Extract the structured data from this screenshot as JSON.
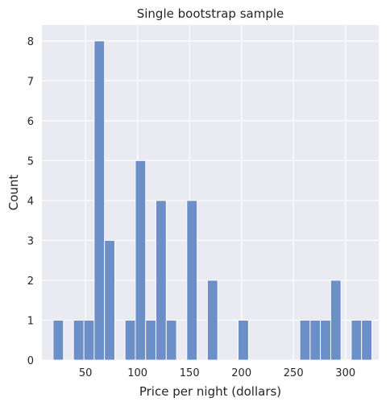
{
  "chart_data": {
    "type": "bar",
    "title": "Single bootstrap sample",
    "xlabel": "Price per night (dollars)",
    "ylabel": "Count",
    "xlim": [
      8,
      332
    ],
    "ylim": [
      0,
      8.4
    ],
    "x_ticks": [
      50,
      100,
      150,
      200,
      250,
      300
    ],
    "y_ticks": [
      0,
      1,
      2,
      3,
      4,
      5,
      6,
      7,
      8
    ],
    "grid": true,
    "colors": {
      "bar": "#6d8fc7",
      "background": "#eaeaf2",
      "grid": "#ffffff"
    },
    "bins": [
      {
        "start": 18.8,
        "end": 28.7,
        "count": 1
      },
      {
        "start": 38.4,
        "end": 48.4,
        "count": 1
      },
      {
        "start": 48.4,
        "end": 58.3,
        "count": 1
      },
      {
        "start": 58.3,
        "end": 68.2,
        "count": 8
      },
      {
        "start": 68.2,
        "end": 78.1,
        "count": 3
      },
      {
        "start": 88.0,
        "end": 97.9,
        "count": 1
      },
      {
        "start": 97.9,
        "end": 107.8,
        "count": 5
      },
      {
        "start": 107.8,
        "end": 117.7,
        "count": 1
      },
      {
        "start": 117.7,
        "end": 127.6,
        "count": 4
      },
      {
        "start": 127.6,
        "end": 137.5,
        "count": 1
      },
      {
        "start": 147.4,
        "end": 157.3,
        "count": 4
      },
      {
        "start": 167.2,
        "end": 177.1,
        "count": 2
      },
      {
        "start": 196.8,
        "end": 206.7,
        "count": 1
      },
      {
        "start": 256.1,
        "end": 266.0,
        "count": 1
      },
      {
        "start": 266.0,
        "end": 275.9,
        "count": 1
      },
      {
        "start": 275.9,
        "end": 285.8,
        "count": 1
      },
      {
        "start": 285.8,
        "end": 295.7,
        "count": 2
      },
      {
        "start": 305.6,
        "end": 315.5,
        "count": 1
      },
      {
        "start": 315.5,
        "end": 325.4,
        "count": 1
      }
    ]
  }
}
